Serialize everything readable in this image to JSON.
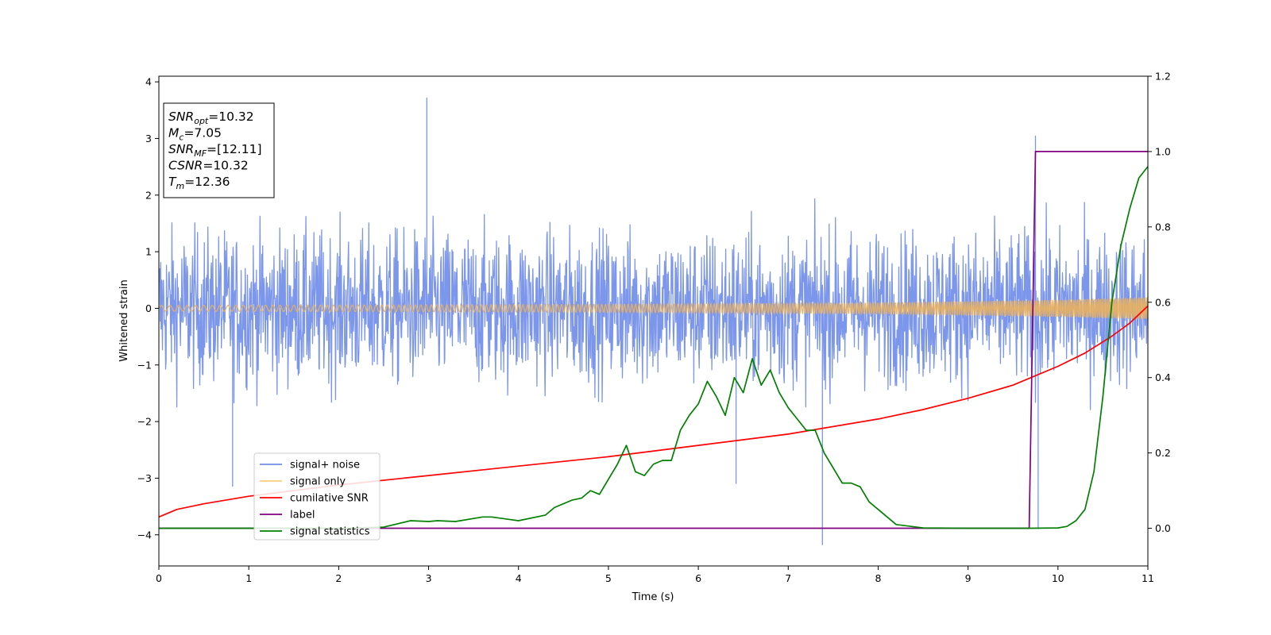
{
  "chart_data": {
    "type": "line",
    "xlabel": "Time (s)",
    "ylabel": "Whitened strain",
    "xlim": [
      0,
      11
    ],
    "ylim": [
      -4.55,
      4.1
    ],
    "ylim_right": [
      -0.1,
      1.2
    ],
    "x_ticks": [
      0,
      1,
      2,
      3,
      4,
      5,
      6,
      7,
      8,
      9,
      10,
      11
    ],
    "y_ticks_left": [
      -4,
      -3,
      -2,
      -1,
      0,
      1,
      2,
      3,
      4
    ],
    "y_ticks_right": [
      0.0,
      0.2,
      0.4,
      0.6,
      0.8,
      1.0,
      1.2
    ],
    "annotation": {
      "lines": [
        {
          "base": "SNR",
          "sub": "opt",
          "value": "=10.32"
        },
        {
          "base": "M",
          "sub": "c",
          "value": "=7.05"
        },
        {
          "base": "SNR",
          "sub": "MF",
          "value": "=[12.11]"
        },
        {
          "base": "CSNR",
          "sub": "",
          "value": "=10.32"
        },
        {
          "base": "T",
          "sub": "m",
          "value": "=12.36"
        }
      ]
    },
    "legend": {
      "placement": "lower-left",
      "entries": [
        {
          "label": "signal+ noise",
          "color": "#6f8de6"
        },
        {
          "label": "signal only",
          "color": "#ffcc80"
        },
        {
          "label": "cumilative SNR",
          "color": "#ff0000"
        },
        {
          "label": "label",
          "color": "#800080"
        },
        {
          "label": "signal statistics",
          "color": "#008000"
        }
      ]
    },
    "series": [
      {
        "name": "signal+ noise",
        "axis": "left",
        "color": "#7b96ea",
        "description_only": "dense noisy whitened strain, approx +/-1.9 with spikes to ~3.7 and -4.2",
        "spikes": [
          [
            2.98,
            3.72
          ],
          [
            7.38,
            -4.18
          ],
          [
            9.78,
            -3.9
          ],
          [
            9.75,
            3.05
          ],
          [
            0.82,
            -3.15
          ],
          [
            6.42,
            -3.1
          ]
        ]
      },
      {
        "name": "signal only",
        "axis": "left",
        "color": "#e8b060",
        "amplitude": [
          [
            0,
            0.05
          ],
          [
            5,
            0.07
          ],
          [
            8,
            0.1
          ],
          [
            10,
            0.15
          ],
          [
            11,
            0.2
          ]
        ]
      },
      {
        "name": "cumilative SNR",
        "axis": "right",
        "color": "#ff0000",
        "x": [
          0,
          0.2,
          0.5,
          1,
          1.5,
          2,
          3,
          4,
          5,
          6,
          7,
          8,
          8.5,
          9,
          9.5,
          10,
          10.3,
          10.6,
          10.8,
          11
        ],
        "y": [
          0.03,
          0.05,
          0.065,
          0.085,
          0.1,
          0.115,
          0.14,
          0.165,
          0.19,
          0.22,
          0.25,
          0.29,
          0.315,
          0.345,
          0.38,
          0.43,
          0.465,
          0.51,
          0.545,
          0.59
        ]
      },
      {
        "name": "label",
        "axis": "right",
        "color": "#800080",
        "x": [
          0,
          9.68,
          9.75,
          11
        ],
        "y": [
          0,
          0,
          1,
          1
        ]
      },
      {
        "name": "signal statistics",
        "axis": "right",
        "color": "#008000",
        "x": [
          0,
          0.5,
          1,
          1.5,
          2,
          2.5,
          2.8,
          3.0,
          3.1,
          3.3,
          3.6,
          3.7,
          4.0,
          4.3,
          4.4,
          4.6,
          4.7,
          4.8,
          4.9,
          5.0,
          5.1,
          5.2,
          5.3,
          5.4,
          5.5,
          5.6,
          5.7,
          5.8,
          5.9,
          6.0,
          6.1,
          6.2,
          6.3,
          6.4,
          6.5,
          6.6,
          6.7,
          6.8,
          6.9,
          7.0,
          7.1,
          7.2,
          7.3,
          7.4,
          7.5,
          7.6,
          7.7,
          7.8,
          7.9,
          8.0,
          8.2,
          8.5,
          9.0,
          9.5,
          9.7,
          10.0,
          10.1,
          10.2,
          10.3,
          10.4,
          10.5,
          10.6,
          10.7,
          10.8,
          10.9,
          11.0
        ],
        "y": [
          0.0,
          0.0,
          0.0,
          0.0,
          0.0,
          0.003,
          0.02,
          0.018,
          0.02,
          0.018,
          0.03,
          0.03,
          0.02,
          0.035,
          0.055,
          0.075,
          0.08,
          0.1,
          0.09,
          0.13,
          0.17,
          0.22,
          0.15,
          0.14,
          0.17,
          0.18,
          0.18,
          0.26,
          0.3,
          0.33,
          0.39,
          0.35,
          0.3,
          0.4,
          0.36,
          0.45,
          0.38,
          0.42,
          0.36,
          0.32,
          0.29,
          0.26,
          0.26,
          0.2,
          0.16,
          0.12,
          0.12,
          0.11,
          0.07,
          0.05,
          0.01,
          0.001,
          0.0,
          0.0,
          0.0,
          0.001,
          0.005,
          0.02,
          0.05,
          0.15,
          0.35,
          0.6,
          0.75,
          0.85,
          0.93,
          0.96
        ]
      }
    ]
  }
}
